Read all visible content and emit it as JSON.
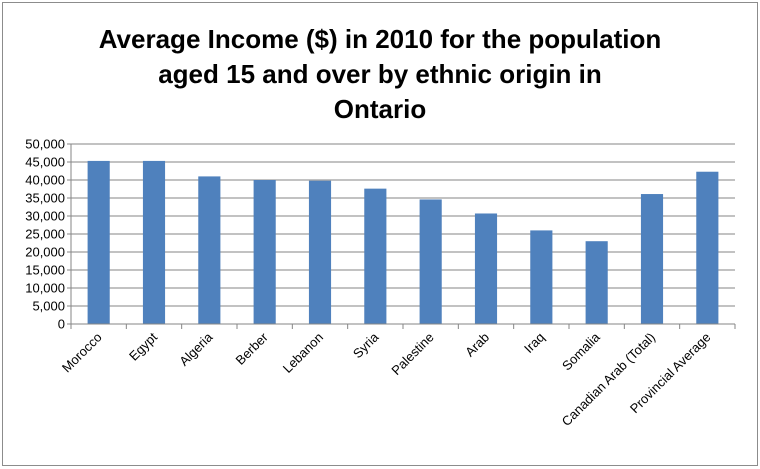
{
  "chart_data": {
    "type": "bar",
    "title_lines": [
      "Average Income ($) in 2010 for the population",
      "aged 15 and over by ethnic origin in",
      "Ontario"
    ],
    "categories": [
      "Morocco",
      "Egypt",
      "Algeria",
      "Berber",
      "Lebanon",
      "Syria",
      "Palestine",
      "Arab",
      "Iraq",
      "Somalia",
      "Canadian Arab (Total)",
      "Provincial Average"
    ],
    "values": [
      45300,
      45300,
      41000,
      40000,
      39800,
      37600,
      34600,
      30700,
      26000,
      23000,
      36100,
      42300
    ],
    "yticks": [
      "0",
      "5,000",
      "10,000",
      "15,000",
      "20,000",
      "25,000",
      "30,000",
      "35,000",
      "40,000",
      "45,000",
      "50,000"
    ],
    "ylim": [
      0,
      50000
    ],
    "grid": true,
    "bar_color": "#4f81bd",
    "grid_color": "#868686",
    "legend": "none"
  }
}
